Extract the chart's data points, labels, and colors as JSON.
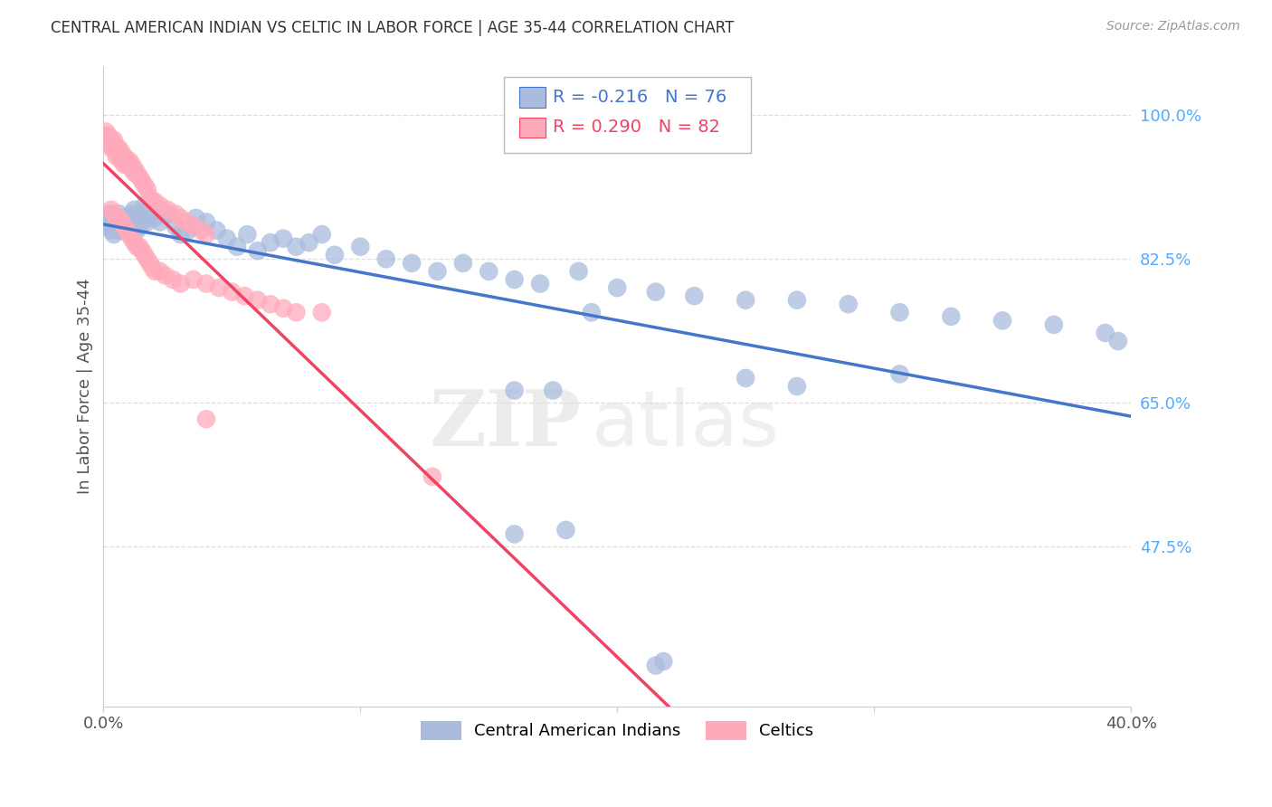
{
  "title": "CENTRAL AMERICAN INDIAN VS CELTIC IN LABOR FORCE | AGE 35-44 CORRELATION CHART",
  "source": "Source: ZipAtlas.com",
  "ylabel": "In Labor Force | Age 35-44",
  "xlim": [
    0.0,
    0.4
  ],
  "ylim": [
    0.28,
    1.06
  ],
  "ytick_positions": [
    0.475,
    0.65,
    0.825,
    1.0
  ],
  "yticklabels": [
    "47.5%",
    "65.0%",
    "82.5%",
    "100.0%"
  ],
  "legend_label1": "Central American Indians",
  "legend_label2": "Celtics",
  "r_blue": -0.216,
  "n_blue": 76,
  "r_pink": 0.29,
  "n_pink": 82,
  "watermark_top": "ZIP",
  "watermark_bot": "atlas",
  "blue_color": "#AABBDD",
  "pink_color": "#FFAABB",
  "blue_line_color": "#4477CC",
  "pink_line_color": "#EE4466",
  "background_color": "#FFFFFF",
  "grid_color": "#DDDDDD",
  "title_color": "#333333",
  "source_color": "#999999",
  "ytick_color": "#55AAFF",
  "xtick_color": "#555555",
  "ylabel_color": "#555555",
  "blue_x": [
    0.001,
    0.002,
    0.002,
    0.003,
    0.003,
    0.004,
    0.004,
    0.005,
    0.005,
    0.006,
    0.006,
    0.007,
    0.007,
    0.008,
    0.008,
    0.009,
    0.01,
    0.01,
    0.011,
    0.012,
    0.013,
    0.014,
    0.015,
    0.016,
    0.017,
    0.018,
    0.02,
    0.022,
    0.025,
    0.028,
    0.03,
    0.033,
    0.036,
    0.04,
    0.044,
    0.048,
    0.052,
    0.056,
    0.06,
    0.065,
    0.07,
    0.075,
    0.08,
    0.085,
    0.09,
    0.1,
    0.11,
    0.12,
    0.13,
    0.14,
    0.15,
    0.16,
    0.17,
    0.185,
    0.2,
    0.215,
    0.23,
    0.25,
    0.27,
    0.29,
    0.31,
    0.33,
    0.35,
    0.37,
    0.39,
    0.395,
    0.25,
    0.27,
    0.19,
    0.31,
    0.16,
    0.175,
    0.215,
    0.218,
    0.16,
    0.18
  ],
  "blue_y": [
    0.865,
    0.88,
    0.87,
    0.875,
    0.86,
    0.87,
    0.855,
    0.865,
    0.86,
    0.875,
    0.88,
    0.87,
    0.86,
    0.875,
    0.865,
    0.87,
    0.86,
    0.875,
    0.88,
    0.885,
    0.86,
    0.865,
    0.88,
    0.89,
    0.87,
    0.875,
    0.875,
    0.87,
    0.88,
    0.865,
    0.855,
    0.86,
    0.875,
    0.87,
    0.86,
    0.85,
    0.84,
    0.855,
    0.835,
    0.845,
    0.85,
    0.84,
    0.845,
    0.855,
    0.83,
    0.84,
    0.825,
    0.82,
    0.81,
    0.82,
    0.81,
    0.8,
    0.795,
    0.81,
    0.79,
    0.785,
    0.78,
    0.775,
    0.775,
    0.77,
    0.76,
    0.755,
    0.75,
    0.745,
    0.735,
    0.725,
    0.68,
    0.67,
    0.76,
    0.685,
    0.665,
    0.665,
    0.33,
    0.335,
    0.49,
    0.495
  ],
  "pink_x": [
    0.001,
    0.001,
    0.001,
    0.002,
    0.002,
    0.002,
    0.003,
    0.003,
    0.003,
    0.004,
    0.004,
    0.004,
    0.005,
    0.005,
    0.005,
    0.006,
    0.006,
    0.006,
    0.007,
    0.007,
    0.007,
    0.008,
    0.008,
    0.008,
    0.009,
    0.009,
    0.01,
    0.01,
    0.011,
    0.011,
    0.012,
    0.012,
    0.013,
    0.014,
    0.015,
    0.016,
    0.017,
    0.018,
    0.019,
    0.02,
    0.022,
    0.025,
    0.028,
    0.03,
    0.032,
    0.035,
    0.038,
    0.04,
    0.003,
    0.004,
    0.005,
    0.006,
    0.007,
    0.008,
    0.009,
    0.01,
    0.011,
    0.012,
    0.013,
    0.014,
    0.015,
    0.016,
    0.017,
    0.018,
    0.019,
    0.02,
    0.022,
    0.024,
    0.027,
    0.03,
    0.035,
    0.04,
    0.045,
    0.05,
    0.055,
    0.06,
    0.065,
    0.07,
    0.075,
    0.085,
    0.128,
    0.04
  ],
  "pink_y": [
    0.98,
    0.975,
    0.97,
    0.975,
    0.97,
    0.965,
    0.97,
    0.965,
    0.96,
    0.97,
    0.965,
    0.96,
    0.96,
    0.955,
    0.95,
    0.96,
    0.955,
    0.95,
    0.955,
    0.95,
    0.945,
    0.95,
    0.945,
    0.94,
    0.945,
    0.94,
    0.945,
    0.94,
    0.94,
    0.935,
    0.935,
    0.93,
    0.93,
    0.925,
    0.92,
    0.915,
    0.91,
    0.9,
    0.895,
    0.895,
    0.89,
    0.885,
    0.88,
    0.875,
    0.87,
    0.865,
    0.86,
    0.855,
    0.885,
    0.88,
    0.875,
    0.875,
    0.87,
    0.865,
    0.86,
    0.855,
    0.85,
    0.845,
    0.84,
    0.84,
    0.835,
    0.83,
    0.825,
    0.82,
    0.815,
    0.81,
    0.81,
    0.805,
    0.8,
    0.795,
    0.8,
    0.795,
    0.79,
    0.785,
    0.78,
    0.775,
    0.77,
    0.765,
    0.76,
    0.76,
    0.56,
    0.63
  ]
}
